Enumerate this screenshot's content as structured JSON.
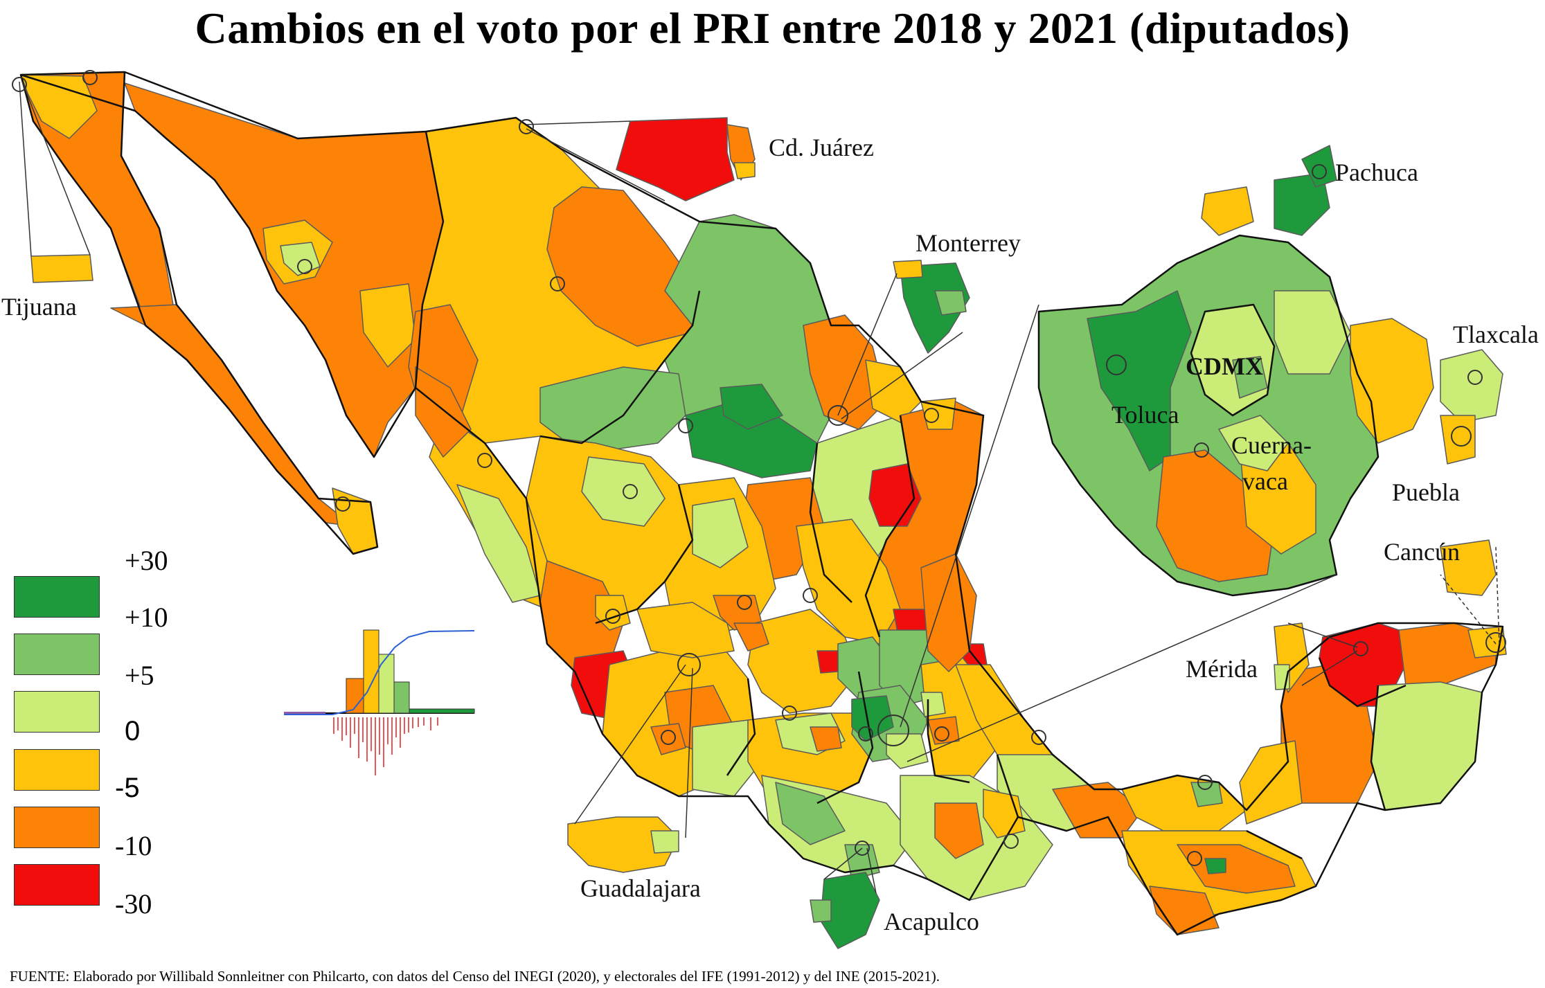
{
  "title": "Cambios en el voto por el PRI entre 2018 y 2021 (diputados)",
  "footer": "FUENTE: Elaborado por Willibald Sonnleitner con Philcarto, con datos del Censo del INEGI (2020), y electorales del IFE (1991-2012) y del INE (2015-2021).",
  "labels": {
    "tijuana": "Tijuana",
    "juarez": "Cd. Juárez",
    "monterrey": "Monterrey",
    "pachuca": "Pachuca",
    "tlaxcala": "Tlaxcala",
    "cdmx": "CDMX",
    "toluca": "Toluca",
    "cuernavaca_1": "Cuerna-",
    "cuernavaca_2": "vaca",
    "puebla": "Puebla",
    "cancun": "Cancún",
    "merida": "Mérida",
    "guadalajara": "Guadalajara",
    "acapulco": "Acapulco"
  },
  "legend": {
    "breaks": [
      "+30",
      "+10",
      "+5",
      "0",
      "-5",
      "-10",
      "-30"
    ],
    "classes": [
      {
        "range": "+10 a +30",
        "color": "#1e9a3c"
      },
      {
        "range": "+5 a +10",
        "color": "#7cc466"
      },
      {
        "range": "0 a +5",
        "color": "#ccec78"
      },
      {
        "range": "-5 a 0",
        "color": "#fec30a"
      },
      {
        "range": "-10 a -5",
        "color": "#fc8305"
      },
      {
        "range": "-30 a -10",
        "color": "#f20d0d"
      }
    ]
  },
  "colors": {
    "dark_green": "#1e9a3c",
    "green": "#7cc466",
    "light_green": "#ccec78",
    "yellow": "#fec30a",
    "orange": "#fc8305",
    "red": "#f20d0d"
  }
}
